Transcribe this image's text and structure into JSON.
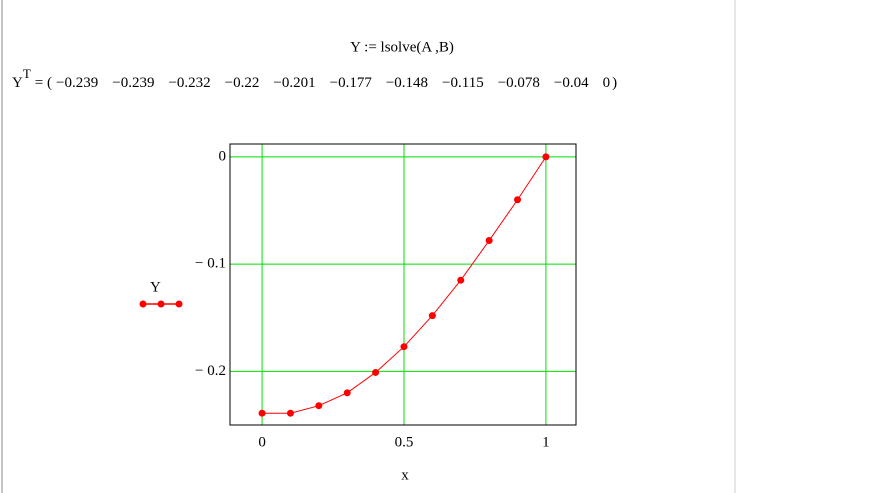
{
  "worksheet": {
    "definition": "Y := lsolve(A ,B)",
    "result_name": "Y",
    "result_superscript": "T",
    "result_values": [
      "−0.239",
      "−0.239",
      "−0.232",
      "−0.22",
      "−0.201",
      "−0.177",
      "−0.148",
      "−0.115",
      "−0.078",
      "−0.04",
      "0"
    ]
  },
  "chart_data": {
    "type": "line",
    "x_label": "x",
    "x": [
      0,
      0.1,
      0.2,
      0.3,
      0.4,
      0.5,
      0.6,
      0.7,
      0.8,
      0.9,
      1
    ],
    "series": [
      {
        "name": "Y",
        "color": "#ff0000",
        "values": [
          -0.239,
          -0.239,
          -0.232,
          -0.22,
          -0.201,
          -0.177,
          -0.148,
          -0.115,
          -0.078,
          -0.04,
          0
        ]
      }
    ],
    "xlim": [
      -0.113,
      1.106
    ],
    "ylim": [
      -0.25,
      0.012
    ],
    "xticks": [
      0,
      0.5,
      1
    ],
    "yticks": [
      0,
      {
        "value": -0.1,
        "label": "− 0.1"
      },
      {
        "value": -0.2,
        "label": "− 0.2"
      }
    ],
    "grid": true,
    "grid_color": "#00e000",
    "legend": "left"
  }
}
